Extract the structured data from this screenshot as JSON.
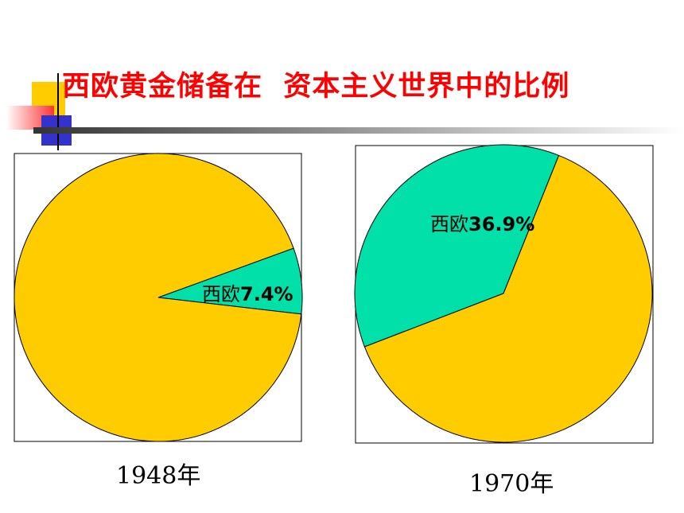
{
  "title": "西欧黄金储备在  资本主义世界中的比例",
  "colors": {
    "title": "#ff0000",
    "other_slice": "#ffcc00",
    "western_europe_slice": "#00e0a8",
    "outline": "#000000",
    "deco_yellow": "#ffcc00",
    "deco_blue": "#3333cc",
    "deco_red": "#ff3333"
  },
  "chart_data": [
    {
      "type": "pie",
      "title": "1948年",
      "slices": [
        {
          "label": "西欧",
          "value_text": "7.4%",
          "value": 7.4,
          "color": "#00e0a8"
        },
        {
          "label": "",
          "value": 92.6,
          "color": "#ffcc00"
        }
      ]
    },
    {
      "type": "pie",
      "title": "1970年",
      "slices": [
        {
          "label": "西欧",
          "value_text": "36.9%",
          "value": 36.9,
          "color": "#00e0a8"
        },
        {
          "label": "",
          "value": 63.1,
          "color": "#ffcc00"
        }
      ]
    }
  ]
}
